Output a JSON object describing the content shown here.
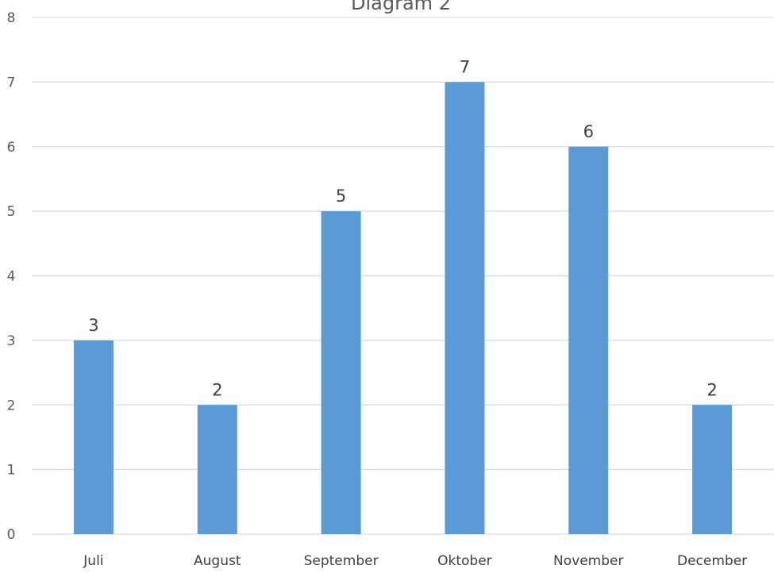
{
  "chart_data": {
    "type": "bar",
    "title": "Diagram 2",
    "xlabel": "",
    "ylabel": "",
    "categories": [
      "Juli",
      "August",
      "September",
      "Oktober",
      "November",
      "December"
    ],
    "values": [
      3,
      2,
      5,
      7,
      6,
      2
    ],
    "ylim": [
      0,
      8
    ],
    "yticks": [
      0,
      1,
      2,
      3,
      4,
      5,
      6,
      7,
      8
    ],
    "data_labels": true,
    "grid": true,
    "legend": "none",
    "bar_color": "#5B9BD5"
  }
}
